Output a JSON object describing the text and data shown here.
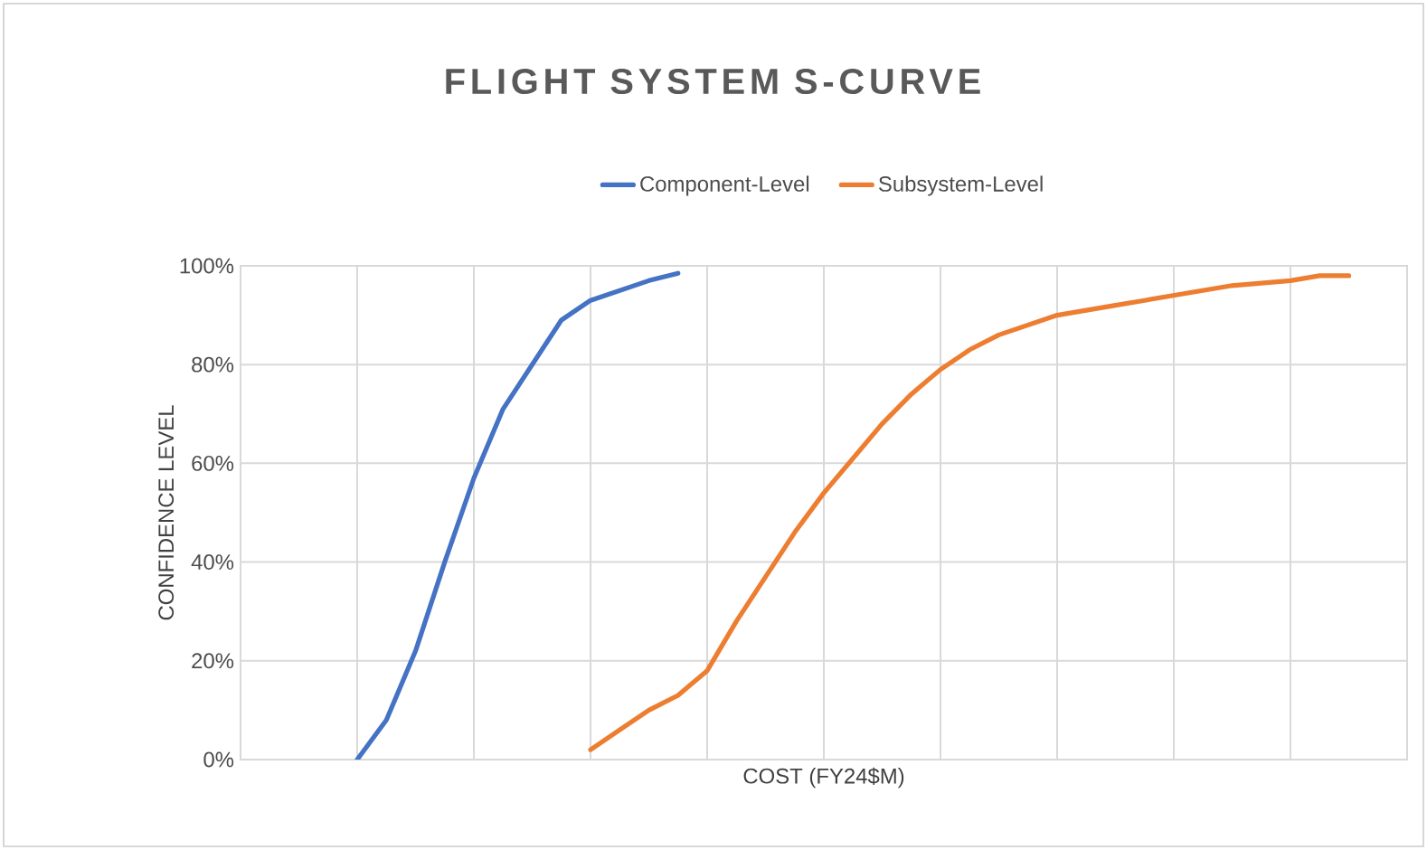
{
  "chart_data": {
    "type": "line",
    "title": "FLIGHT SYSTEM S-CURVE",
    "xlabel": "COST (FY24$M)",
    "ylabel": "CONFIDENCE LEVEL",
    "categories": [
      null,
      null,
      null,
      null,
      null,
      null,
      null,
      null,
      null,
      null,
      null,
      null,
      null,
      null,
      null,
      null,
      null,
      null,
      null,
      null,
      null,
      null,
      null,
      null,
      null,
      null,
      null,
      null,
      null,
      null,
      null,
      null,
      null,
      null,
      null,
      null,
      null,
      null,
      null,
      null,
      null
    ],
    "series": [
      {
        "name": "Component-Level",
        "color": "#4472c4",
        "values": [
          null,
          null,
          null,
          null,
          0,
          8,
          22,
          40,
          57,
          71,
          80,
          89,
          93,
          95,
          97,
          98.5,
          null,
          null,
          null,
          null,
          null,
          null,
          null,
          null,
          null,
          null,
          null,
          null,
          null,
          null,
          null,
          null,
          null,
          null,
          null,
          null,
          null,
          null,
          null,
          null,
          null
        ]
      },
      {
        "name": "Subsystem-Level",
        "color": "#ed7d31",
        "values": [
          null,
          null,
          null,
          null,
          null,
          null,
          null,
          null,
          null,
          null,
          null,
          null,
          2,
          6,
          10,
          13,
          18,
          28,
          37,
          46,
          54,
          61,
          68,
          74,
          79,
          83,
          86,
          88,
          90,
          91,
          92,
          93,
          94,
          95,
          96,
          96.5,
          97,
          98,
          98,
          null,
          null
        ]
      }
    ],
    "ylim": [
      0,
      100
    ],
    "yticks": [
      {
        "value": 0,
        "label": "0%"
      },
      {
        "value": 20,
        "label": "20%"
      },
      {
        "value": 40,
        "label": "40%"
      },
      {
        "value": 60,
        "label": "60%"
      },
      {
        "value": 80,
        "label": "80%"
      },
      {
        "value": 100,
        "label": "100%"
      }
    ],
    "tick_labels": "y",
    "grid": true,
    "legend": "top",
    "marker": "none",
    "line_style": "solid"
  }
}
